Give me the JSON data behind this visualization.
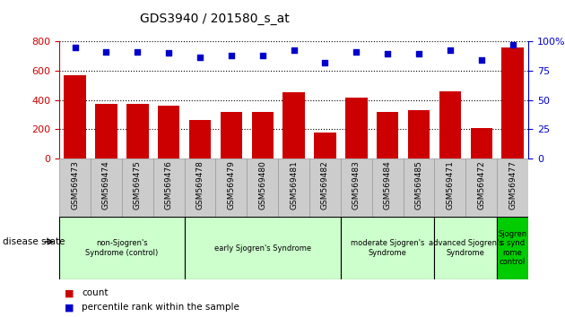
{
  "title": "GDS3940 / 201580_s_at",
  "samples": [
    "GSM569473",
    "GSM569474",
    "GSM569475",
    "GSM569476",
    "GSM569478",
    "GSM569479",
    "GSM569480",
    "GSM569481",
    "GSM569482",
    "GSM569483",
    "GSM569484",
    "GSM569485",
    "GSM569471",
    "GSM569472",
    "GSM569477"
  ],
  "counts": [
    570,
    375,
    370,
    360,
    265,
    315,
    315,
    450,
    175,
    415,
    320,
    330,
    460,
    210,
    760
  ],
  "percentile_ranks": [
    95,
    91,
    91,
    90,
    86,
    88,
    88,
    92,
    82,
    91,
    89,
    89,
    92,
    84,
    97
  ],
  "bar_color": "#cc0000",
  "dot_color": "#0000cc",
  "ylim_left": [
    0,
    800
  ],
  "ylim_right": [
    0,
    100
  ],
  "yticks_left": [
    0,
    200,
    400,
    600,
    800
  ],
  "yticks_right": [
    0,
    25,
    50,
    75,
    100
  ],
  "group_boundaries": [
    {
      "start": 0,
      "end": 4,
      "label": "non-Sjogren's\nSyndrome (control)",
      "color": "#ccffcc"
    },
    {
      "start": 4,
      "end": 9,
      "label": "early Sjogren's Syndrome",
      "color": "#ccffcc"
    },
    {
      "start": 9,
      "end": 12,
      "label": "moderate Sjogren's\nSyndrome",
      "color": "#ccffcc"
    },
    {
      "start": 12,
      "end": 14,
      "label": "advanced Sjogren's\nSyndrome",
      "color": "#ccffcc"
    },
    {
      "start": 14,
      "end": 15,
      "label": "Sjogren\ns synd\nrome\ncontrol",
      "color": "#00cc00"
    }
  ],
  "tick_label_color": "#cc0000",
  "right_axis_color": "#0000cc",
  "tick_bg_color": "#cccccc",
  "legend_count_label": "count",
  "legend_pct_label": "percentile rank within the sample",
  "disease_state_label": "disease state"
}
